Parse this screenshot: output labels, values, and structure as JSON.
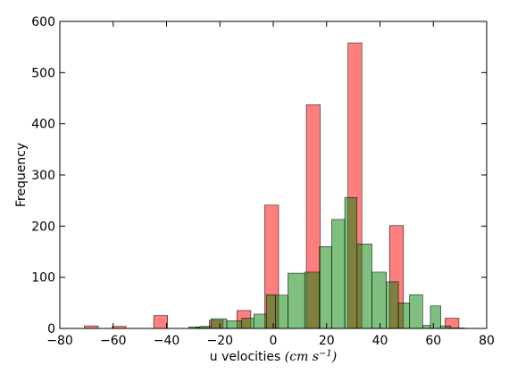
{
  "chart_data": {
    "type": "bar",
    "subtype": "overlaid histogram",
    "title": "",
    "xlabel": "u velocities",
    "xlabel_math": "(cm s",
    "xlabel_math_sup": "−1",
    "xlabel_math_close": ")",
    "ylabel": "Frequency",
    "xlim": [
      -80,
      80
    ],
    "ylim": [
      0,
      600
    ],
    "xticks": [
      -80,
      -60,
      -40,
      -20,
      0,
      20,
      40,
      60,
      80
    ],
    "yticks": [
      0,
      100,
      200,
      300,
      400,
      500,
      600
    ],
    "grid": false,
    "legend": "none",
    "series": [
      {
        "color": "#ff0000",
        "alpha": 0.5,
        "bins": [
          {
            "x0": -70.8,
            "x1": -65.6,
            "count": 5
          },
          {
            "x0": -60.4,
            "x1": -55.2,
            "count": 4
          },
          {
            "x0": -44.8,
            "x1": -39.6,
            "count": 25
          },
          {
            "x0": -29.2,
            "x1": -24.0,
            "count": 2
          },
          {
            "x0": -24.0,
            "x1": -18.8,
            "count": 16
          },
          {
            "x0": -13.6,
            "x1": -8.4,
            "count": 35
          },
          {
            "x0": -3.2,
            "x1": 2.0,
            "count": 241
          },
          {
            "x0": 12.4,
            "x1": 17.6,
            "count": 437
          },
          {
            "x0": 28.0,
            "x1": 33.2,
            "count": 558
          },
          {
            "x0": 43.6,
            "x1": 48.8,
            "count": 201
          },
          {
            "x0": 64.4,
            "x1": 69.6,
            "count": 20
          }
        ]
      },
      {
        "color": "#008000",
        "alpha": 0.5,
        "bins": [
          {
            "x0": -31.7,
            "x1": -27.5,
            "count": 3
          },
          {
            "x0": -27.5,
            "x1": -23.3,
            "count": 4
          },
          {
            "x0": -23.3,
            "x1": -17.4,
            "count": 19
          },
          {
            "x0": -17.4,
            "x1": -11.8,
            "count": 15
          },
          {
            "x0": -11.8,
            "x1": -7.3,
            "count": 20
          },
          {
            "x0": -7.3,
            "x1": -2.6,
            "count": 28
          },
          {
            "x0": -2.6,
            "x1": 0.8,
            "count": 66
          },
          {
            "x0": 0.8,
            "x1": 5.5,
            "count": 65
          },
          {
            "x0": 5.5,
            "x1": 11.8,
            "count": 108
          },
          {
            "x0": 11.8,
            "x1": 17.3,
            "count": 110
          },
          {
            "x0": 17.3,
            "x1": 21.9,
            "count": 160
          },
          {
            "x0": 21.9,
            "x1": 26.8,
            "count": 213
          },
          {
            "x0": 26.8,
            "x1": 31.4,
            "count": 256
          },
          {
            "x0": 31.4,
            "x1": 37.0,
            "count": 165
          },
          {
            "x0": 37.0,
            "x1": 42.4,
            "count": 110
          },
          {
            "x0": 42.4,
            "x1": 46.9,
            "count": 91
          },
          {
            "x0": 46.9,
            "x1": 51.1,
            "count": 50
          },
          {
            "x0": 51.1,
            "x1": 56.0,
            "count": 66
          },
          {
            "x0": 56.0,
            "x1": 58.9,
            "count": 6
          },
          {
            "x0": 58.9,
            "x1": 62.8,
            "count": 44
          },
          {
            "x0": 62.8,
            "x1": 66.4,
            "count": 5
          },
          {
            "x0": 66.4,
            "x1": 71.8,
            "count": 1
          }
        ]
      }
    ]
  }
}
